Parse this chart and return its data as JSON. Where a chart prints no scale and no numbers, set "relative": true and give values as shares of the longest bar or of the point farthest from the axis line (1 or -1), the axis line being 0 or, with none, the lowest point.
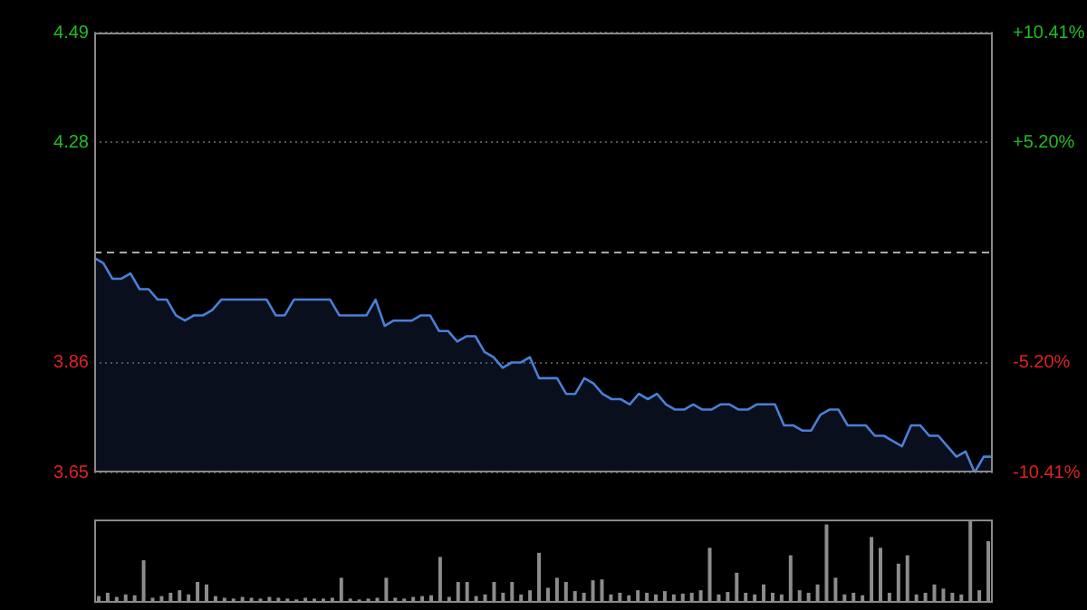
{
  "chart_data": [
    {
      "type": "area",
      "categories": [
        null,
        null,
        null,
        null,
        null,
        null,
        null,
        null,
        null,
        null,
        null,
        null,
        null,
        null,
        null,
        null,
        null,
        null,
        null,
        null,
        null,
        null,
        null,
        null,
        null,
        null,
        null,
        null,
        null,
        null,
        null,
        null,
        null,
        null,
        null,
        null,
        null,
        null,
        null,
        null,
        null,
        null,
        null,
        null,
        null,
        null,
        null,
        null,
        null,
        null,
        null,
        null,
        null,
        null,
        null,
        null,
        null,
        null,
        null,
        null,
        null,
        null,
        null,
        null,
        null,
        null,
        null,
        null,
        null,
        null,
        null,
        null,
        null,
        null,
        null,
        null,
        null,
        null,
        null,
        null,
        null,
        null,
        null,
        null,
        null,
        null,
        null,
        null,
        null,
        null,
        null,
        null,
        null,
        null,
        null,
        null,
        null,
        null,
        null,
        null
      ],
      "ylim": [
        3.65,
        4.49
      ],
      "yticks": [
        3.65,
        3.86,
        4.28,
        4.49
      ],
      "y2lim": [
        -10.41,
        10.41
      ],
      "y2ticks": [
        {
          "value": -10.41,
          "label": "-10.41%"
        },
        {
          "value": -5.2,
          "label": "-5.20%"
        },
        {
          "value": 5.2,
          "label": "+5.20%"
        },
        {
          "value": 10.41,
          "label": "+10.41%"
        }
      ],
      "grid": "y",
      "tick_labels": "y",
      "ref_lines": [
        {
          "axis": "y",
          "value": 4.07,
          "label": null,
          "line_style": "dashed"
        }
      ],
      "series": [
        {
          "color": "#4a7fd6",
          "values": [
            4.06,
            4.05,
            4.02,
            4.02,
            4.03,
            4.0,
            4.0,
            3.98,
            3.98,
            3.95,
            3.94,
            3.95,
            3.95,
            3.96,
            3.98,
            3.98,
            3.98,
            3.98,
            3.98,
            3.98,
            3.95,
            3.95,
            3.98,
            3.98,
            3.98,
            3.98,
            3.98,
            3.95,
            3.95,
            3.95,
            3.95,
            3.98,
            3.93,
            3.94,
            3.94,
            3.94,
            3.95,
            3.95,
            3.92,
            3.92,
            3.9,
            3.91,
            3.91,
            3.88,
            3.87,
            3.85,
            3.86,
            3.86,
            3.87,
            3.83,
            3.83,
            3.83,
            3.8,
            3.8,
            3.83,
            3.82,
            3.8,
            3.79,
            3.79,
            3.78,
            3.8,
            3.79,
            3.8,
            3.78,
            3.77,
            3.77,
            3.78,
            3.77,
            3.77,
            3.78,
            3.78,
            3.77,
            3.77,
            3.78,
            3.78,
            3.78,
            3.74,
            3.74,
            3.73,
            3.73,
            3.76,
            3.77,
            3.77,
            3.74,
            3.74,
            3.74,
            3.72,
            3.72,
            3.71,
            3.7,
            3.74,
            3.74,
            3.72,
            3.72,
            3.7,
            3.68,
            3.69,
            3.65,
            3.68,
            3.68
          ]
        }
      ]
    },
    {
      "type": "bar",
      "relative": true,
      "tick_labels": false,
      "color": "#8c8c8c",
      "categories": [
        null,
        null,
        null,
        null,
        null,
        null,
        null,
        null,
        null,
        null,
        null,
        null,
        null,
        null,
        null,
        null,
        null,
        null,
        null,
        null,
        null,
        null,
        null,
        null,
        null,
        null,
        null,
        null,
        null,
        null,
        null,
        null,
        null,
        null,
        null,
        null,
        null,
        null,
        null,
        null,
        null,
        null,
        null,
        null,
        null,
        null,
        null,
        null,
        null,
        null,
        null,
        null,
        null,
        null,
        null,
        null,
        null,
        null,
        null,
        null,
        null,
        null,
        null,
        null,
        null,
        null,
        null,
        null,
        null,
        null,
        null,
        null,
        null,
        null,
        null,
        null,
        null,
        null,
        null,
        null,
        null,
        null,
        null,
        null,
        null,
        null,
        null,
        null,
        null,
        null,
        null,
        null,
        null,
        null,
        null,
        null,
        null,
        null,
        null,
        null
      ],
      "values": [
        0.08,
        0.12,
        0.07,
        0.1,
        0.09,
        0.51,
        0.06,
        0.08,
        0.12,
        0.15,
        0.1,
        0.25,
        0.22,
        0.08,
        0.06,
        0.05,
        0.07,
        0.06,
        0.05,
        0.07,
        0.06,
        0.05,
        0.04,
        0.06,
        0.05,
        0.05,
        0.06,
        0.3,
        0.05,
        0.04,
        0.05,
        0.06,
        0.3,
        0.06,
        0.05,
        0.07,
        0.08,
        0.09,
        0.55,
        0.07,
        0.25,
        0.25,
        0.08,
        0.1,
        0.25,
        0.12,
        0.25,
        0.1,
        0.15,
        0.6,
        0.18,
        0.3,
        0.25,
        0.14,
        0.12,
        0.27,
        0.28,
        0.1,
        0.12,
        0.09,
        0.15,
        0.12,
        0.1,
        0.14,
        0.1,
        0.11,
        0.12,
        0.15,
        0.66,
        0.1,
        0.13,
        0.36,
        0.12,
        0.1,
        0.22,
        0.12,
        0.1,
        0.57,
        0.15,
        0.12,
        0.22,
        0.94,
        0.3,
        0.1,
        0.12,
        0.09,
        0.79,
        0.66,
        0.12,
        0.47,
        0.57,
        0.1,
        0.12,
        0.22,
        0.17,
        0.12,
        0.1,
        1,
        0.15,
        0.74
      ]
    }
  ]
}
